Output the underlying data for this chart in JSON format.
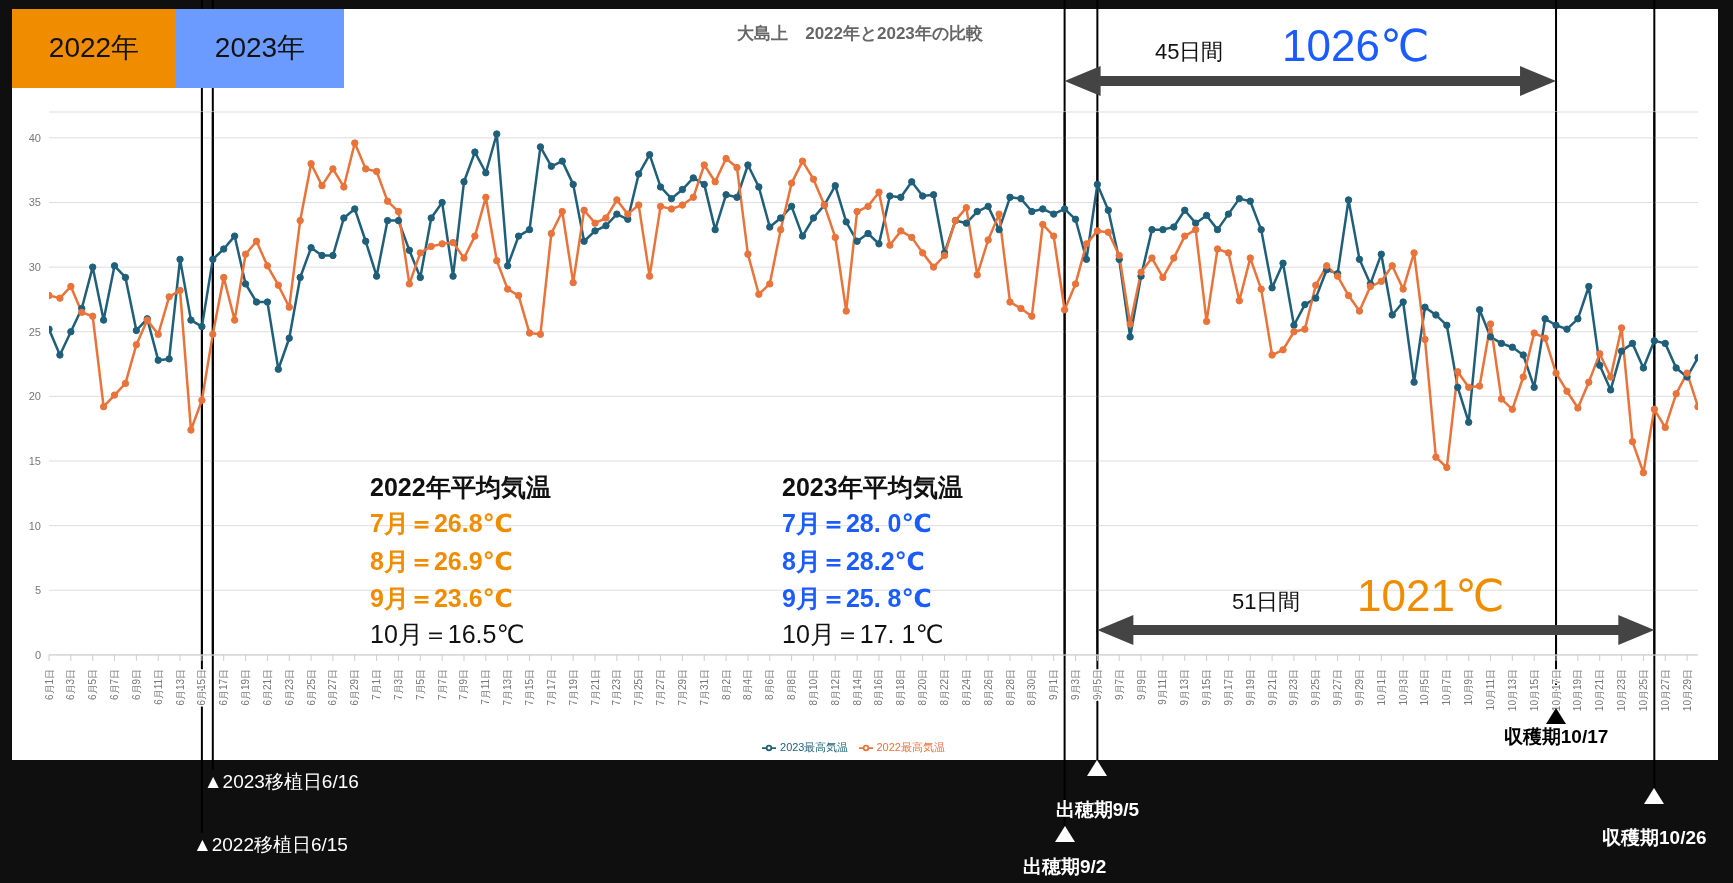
{
  "chart_data": {
    "type": "line",
    "title": "大島上　2022年と2023年の比較",
    "x": [
      "--06-01",
      "--06-02",
      "--06-03",
      "--06-04",
      "--06-05",
      "--06-06",
      "--06-07",
      "--06-08",
      "--06-09",
      "--06-10",
      "--06-11",
      "--06-12",
      "--06-13",
      "--06-14",
      "--06-15",
      "--06-16",
      "--06-17",
      "--06-18",
      "--06-19",
      "--06-20",
      "--06-21",
      "--06-22",
      "--06-23",
      "--06-24",
      "--06-25",
      "--06-26",
      "--06-27",
      "--06-28",
      "--06-29",
      "--06-30",
      "--07-01",
      "--07-02",
      "--07-03",
      "--07-04",
      "--07-05",
      "--07-06",
      "--07-07",
      "--07-08",
      "--07-09",
      "--07-10",
      "--07-11",
      "--07-12",
      "--07-13",
      "--07-14",
      "--07-15",
      "--07-16",
      "--07-17",
      "--07-18",
      "--07-19",
      "--07-20",
      "--07-21",
      "--07-22",
      "--07-23",
      "--07-24",
      "--07-25",
      "--07-26",
      "--07-27",
      "--07-28",
      "--07-29",
      "--07-30",
      "--07-31",
      "--08-01",
      "--08-02",
      "--08-03",
      "--08-04",
      "--08-05",
      "--08-06",
      "--08-07",
      "--08-08",
      "--08-09",
      "--08-10",
      "--08-11",
      "--08-12",
      "--08-13",
      "--08-14",
      "--08-15",
      "--08-16",
      "--08-17",
      "--08-18",
      "--08-19",
      "--08-20",
      "--08-21",
      "--08-22",
      "--08-23",
      "--08-24",
      "--08-25",
      "--08-26",
      "--08-27",
      "--08-28",
      "--08-29",
      "--08-30",
      "--08-31",
      "--09-01",
      "--09-02",
      "--09-03",
      "--09-04",
      "--09-05",
      "--09-06",
      "--09-07",
      "--09-08",
      "--09-09",
      "--09-10",
      "--09-11",
      "--09-12",
      "--09-13",
      "--09-14",
      "--09-15",
      "--09-16",
      "--09-17",
      "--09-18",
      "--09-19",
      "--09-20",
      "--09-21",
      "--09-22",
      "--09-23",
      "--09-24",
      "--09-25",
      "--09-26",
      "--09-27",
      "--09-28",
      "--09-29",
      "--09-30",
      "--10-01",
      "--10-02",
      "--10-03",
      "--10-04",
      "--10-05",
      "--10-06",
      "--10-07",
      "--10-08",
      "--10-09",
      "--10-10",
      "--10-11",
      "--10-12",
      "--10-13",
      "--10-14",
      "--10-15",
      "--10-16",
      "--10-17",
      "--10-18",
      "--10-19",
      "--10-20",
      "--10-21",
      "--10-22",
      "--10-23",
      "--10-24",
      "--10-25",
      "--10-26",
      "--10-27",
      "--10-28",
      "--10-29",
      "--10-30"
    ],
    "xlim": [
      "--06-01",
      "--10-30"
    ],
    "xticks": [
      {
        "value": "--06-01",
        "label": "6月1日"
      },
      {
        "value": "--06-03",
        "label": "6月3日"
      },
      {
        "value": "--06-05",
        "label": "6月5日"
      },
      {
        "value": "--06-07",
        "label": "6月7日"
      },
      {
        "value": "--06-09",
        "label": "6月9日"
      },
      {
        "value": "--06-11",
        "label": "6月11日"
      },
      {
        "value": "--06-13",
        "label": "6月13日"
      },
      {
        "value": "--06-15",
        "label": "6月15日"
      },
      {
        "value": "--06-17",
        "label": "6月17日"
      },
      {
        "value": "--06-19",
        "label": "6月19日"
      },
      {
        "value": "--06-21",
        "label": "6月21日"
      },
      {
        "value": "--06-23",
        "label": "6月23日"
      },
      {
        "value": "--06-25",
        "label": "6月25日"
      },
      {
        "value": "--06-27",
        "label": "6月27日"
      },
      {
        "value": "--06-29",
        "label": "6月29日"
      },
      {
        "value": "--07-01",
        "label": "7月1日"
      },
      {
        "value": "--07-03",
        "label": "7月3日"
      },
      {
        "value": "--07-05",
        "label": "7月5日"
      },
      {
        "value": "--07-07",
        "label": "7月7日"
      },
      {
        "value": "--07-09",
        "label": "7月9日"
      },
      {
        "value": "--07-11",
        "label": "7月11日"
      },
      {
        "value": "--07-13",
        "label": "7月13日"
      },
      {
        "value": "--07-15",
        "label": "7月15日"
      },
      {
        "value": "--07-17",
        "label": "7月17日"
      },
      {
        "value": "--07-19",
        "label": "7月19日"
      },
      {
        "value": "--07-21",
        "label": "7月21日"
      },
      {
        "value": "--07-23",
        "label": "7月23日"
      },
      {
        "value": "--07-25",
        "label": "7月25日"
      },
      {
        "value": "--07-27",
        "label": "7月27日"
      },
      {
        "value": "--07-29",
        "label": "7月29日"
      },
      {
        "value": "--07-31",
        "label": "7月31日"
      },
      {
        "value": "--08-02",
        "label": "8月2日"
      },
      {
        "value": "--08-04",
        "label": "8月4日"
      },
      {
        "value": "--08-06",
        "label": "8月6日"
      },
      {
        "value": "--08-08",
        "label": "8月8日"
      },
      {
        "value": "--08-10",
        "label": "8月10日"
      },
      {
        "value": "--08-12",
        "label": "8月12日"
      },
      {
        "value": "--08-14",
        "label": "8月14日"
      },
      {
        "value": "--08-16",
        "label": "8月16日"
      },
      {
        "value": "--08-18",
        "label": "8月18日"
      },
      {
        "value": "--08-20",
        "label": "8月20日"
      },
      {
        "value": "--08-22",
        "label": "8月22日"
      },
      {
        "value": "--08-24",
        "label": "8月24日"
      },
      {
        "value": "--08-26",
        "label": "8月26日"
      },
      {
        "value": "--08-28",
        "label": "8月28日"
      },
      {
        "value": "--08-30",
        "label": "8月30日"
      },
      {
        "value": "--09-01",
        "label": "9月1日"
      },
      {
        "value": "--09-03",
        "label": "9月3日"
      },
      {
        "value": "--09-05",
        "label": "9月5日"
      },
      {
        "value": "--09-07",
        "label": "9月7日"
      },
      {
        "value": "--09-09",
        "label": "9月9日"
      },
      {
        "value": "--09-11",
        "label": "9月11日"
      },
      {
        "value": "--09-13",
        "label": "9月13日"
      },
      {
        "value": "--09-15",
        "label": "9月15日"
      },
      {
        "value": "--09-17",
        "label": "9月17日"
      },
      {
        "value": "--09-19",
        "label": "9月19日"
      },
      {
        "value": "--09-21",
        "label": "9月21日"
      },
      {
        "value": "--09-23",
        "label": "9月23日"
      },
      {
        "value": "--09-25",
        "label": "9月25日"
      },
      {
        "value": "--09-27",
        "label": "9月27日"
      },
      {
        "value": "--09-29",
        "label": "9月29日"
      },
      {
        "value": "--10-01",
        "label": "10月1日"
      },
      {
        "value": "--10-03",
        "label": "10月3日"
      },
      {
        "value": "--10-05",
        "label": "10月5日"
      },
      {
        "value": "--10-07",
        "label": "10月7日"
      },
      {
        "value": "--10-09",
        "label": "10月9日"
      },
      {
        "value": "--10-11",
        "label": "10月11日"
      },
      {
        "value": "--10-13",
        "label": "10月13日"
      },
      {
        "value": "--10-15",
        "label": "10月15日"
      },
      {
        "value": "--10-17",
        "label": "10月17日"
      },
      {
        "value": "--10-19",
        "label": "10月19日"
      },
      {
        "value": "--10-21",
        "label": "10月21日"
      },
      {
        "value": "--10-23",
        "label": "10月23日"
      },
      {
        "value": "--10-25",
        "label": "10月25日"
      },
      {
        "value": "--10-27",
        "label": "10月27日"
      },
      {
        "value": "--10-29",
        "label": "10月29日"
      }
    ],
    "ylim": [
      0,
      42
    ],
    "yticks": [
      0,
      5,
      10,
      15,
      20,
      25,
      30,
      35,
      40
    ],
    "grid": "y",
    "legend": "bottom",
    "marker": "circle",
    "series": [
      {
        "name": "2023最高気温",
        "color": "#1f5f7a",
        "values": [
          25.2,
          23.2,
          25.0,
          26.8,
          30.0,
          25.9,
          30.1,
          29.2,
          25.1,
          26.0,
          22.8,
          22.9,
          30.6,
          25.9,
          25.4,
          30.6,
          31.4,
          32.4,
          28.7,
          27.3,
          27.3,
          22.1,
          24.5,
          29.2,
          31.5,
          30.9,
          30.9,
          33.8,
          34.5,
          32.0,
          29.3,
          33.6,
          33.6,
          31.3,
          29.2,
          33.8,
          35.0,
          29.3,
          36.6,
          38.9,
          37.3,
          40.3,
          30.1,
          32.4,
          32.9,
          39.3,
          37.8,
          38.2,
          36.4,
          32.0,
          32.8,
          33.2,
          34.1,
          33.7,
          37.2,
          38.7,
          36.2,
          35.3,
          36.0,
          36.9,
          36.4,
          32.9,
          35.6,
          35.4,
          37.9,
          36.2,
          33.1,
          33.8,
          34.7,
          32.4,
          33.8,
          34.8,
          36.3,
          33.5,
          32.0,
          32.6,
          31.8,
          35.5,
          35.4,
          36.6,
          35.5,
          35.6,
          31.1,
          33.6,
          33.4,
          34.3,
          34.7,
          32.9,
          35.4,
          35.3,
          34.3,
          34.5,
          34.1,
          34.5,
          33.7,
          30.6,
          36.4,
          34.4,
          30.6,
          24.6,
          29.3,
          32.9,
          32.9,
          33.1,
          34.4,
          33.4,
          34.0,
          32.9,
          34.1,
          35.3,
          35.1,
          32.9,
          28.4,
          30.3,
          25.5,
          27.1,
          27.6,
          29.8,
          29.5,
          35.2,
          30.6,
          28.7,
          31.0,
          26.3,
          27.3,
          21.1,
          26.9,
          26.3,
          25.5,
          20.7,
          18.0,
          26.7,
          24.6,
          24.1,
          23.8,
          23.2,
          20.7,
          26.0,
          25.5,
          25.2,
          26.0,
          28.5,
          22.4,
          20.5,
          23.5,
          24.1,
          22.2,
          24.3,
          24.1,
          22.2,
          21.5,
          23.0
        ]
      },
      {
        "name": "2022最高気温",
        "color": "#e8743b",
        "values": [
          27.8,
          27.6,
          28.5,
          26.5,
          26.2,
          19.2,
          20.1,
          21.0,
          24.0,
          25.9,
          24.8,
          27.7,
          28.2,
          17.4,
          19.7,
          24.8,
          29.2,
          25.9,
          31.0,
          32.0,
          30.1,
          28.6,
          26.9,
          33.6,
          38.0,
          36.3,
          37.6,
          36.2,
          39.6,
          37.6,
          37.4,
          35.1,
          34.3,
          28.7,
          31.1,
          31.6,
          31.8,
          31.9,
          30.7,
          32.4,
          35.4,
          30.5,
          28.3,
          27.8,
          24.9,
          24.8,
          32.6,
          34.3,
          28.8,
          34.4,
          33.4,
          33.8,
          35.2,
          34.1,
          34.8,
          29.3,
          34.7,
          34.5,
          34.8,
          35.4,
          37.9,
          36.6,
          38.4,
          37.7,
          31.0,
          27.9,
          28.7,
          32.9,
          36.5,
          38.2,
          36.8,
          34.8,
          32.3,
          26.6,
          34.3,
          34.7,
          35.8,
          31.7,
          32.8,
          32.3,
          31.1,
          30.0,
          30.9,
          33.6,
          34.6,
          29.4,
          32.1,
          34.1,
          27.3,
          26.8,
          26.2,
          33.3,
          32.4,
          26.7,
          28.7,
          31.8,
          32.8,
          32.7,
          30.9,
          25.6,
          29.6,
          30.7,
          29.2,
          30.7,
          32.4,
          32.9,
          25.8,
          31.4,
          31.1,
          27.4,
          30.7,
          28.3,
          23.2,
          23.6,
          25.0,
          25.2,
          28.6,
          30.1,
          29.3,
          27.8,
          26.6,
          28.5,
          28.9,
          30.1,
          28.3,
          31.1,
          24.4,
          15.3,
          14.5,
          21.9,
          20.7,
          20.8,
          25.6,
          19.8,
          19.0,
          21.5,
          24.9,
          24.5,
          21.8,
          20.4,
          19.1,
          21.1,
          23.3,
          21.5,
          25.3,
          16.5,
          14.1,
          19.0,
          17.6,
          20.2,
          21.8,
          19.2
        ]
      }
    ],
    "ref_lines": [
      {
        "axis": "x",
        "value": "--06-15",
        "label": "▲2022移植日6/15",
        "color": "#000000"
      },
      {
        "axis": "x",
        "value": "--06-16",
        "label": "▲2023移植日6/16",
        "color": "#000000"
      },
      {
        "axis": "x",
        "value": "--09-02",
        "label": "出穂期9/2",
        "color": "#000000"
      },
      {
        "axis": "x",
        "value": "--09-05",
        "label": "出穂期9/5",
        "color": "#000000"
      },
      {
        "axis": "x",
        "value": "--10-17",
        "label": "収穫期10/17",
        "color": "#000000"
      },
      {
        "axis": "x",
        "value": "--10-26",
        "label": "収穫期10/26",
        "color": "#000000"
      }
    ],
    "annotations": [
      "2022年",
      "2023年",
      "2022年平均気温",
      "7月＝26.8℃",
      "8月＝26.9℃",
      "9月＝23.6℃",
      "10月＝16.5℃",
      "2023年平均気温",
      "7月＝28. 0℃",
      "8月＝28.2℃",
      "9月＝25. 8℃",
      "10月＝17. 1℃",
      "45日間",
      "1026℃",
      "51日間",
      "1021℃"
    ]
  }
}
